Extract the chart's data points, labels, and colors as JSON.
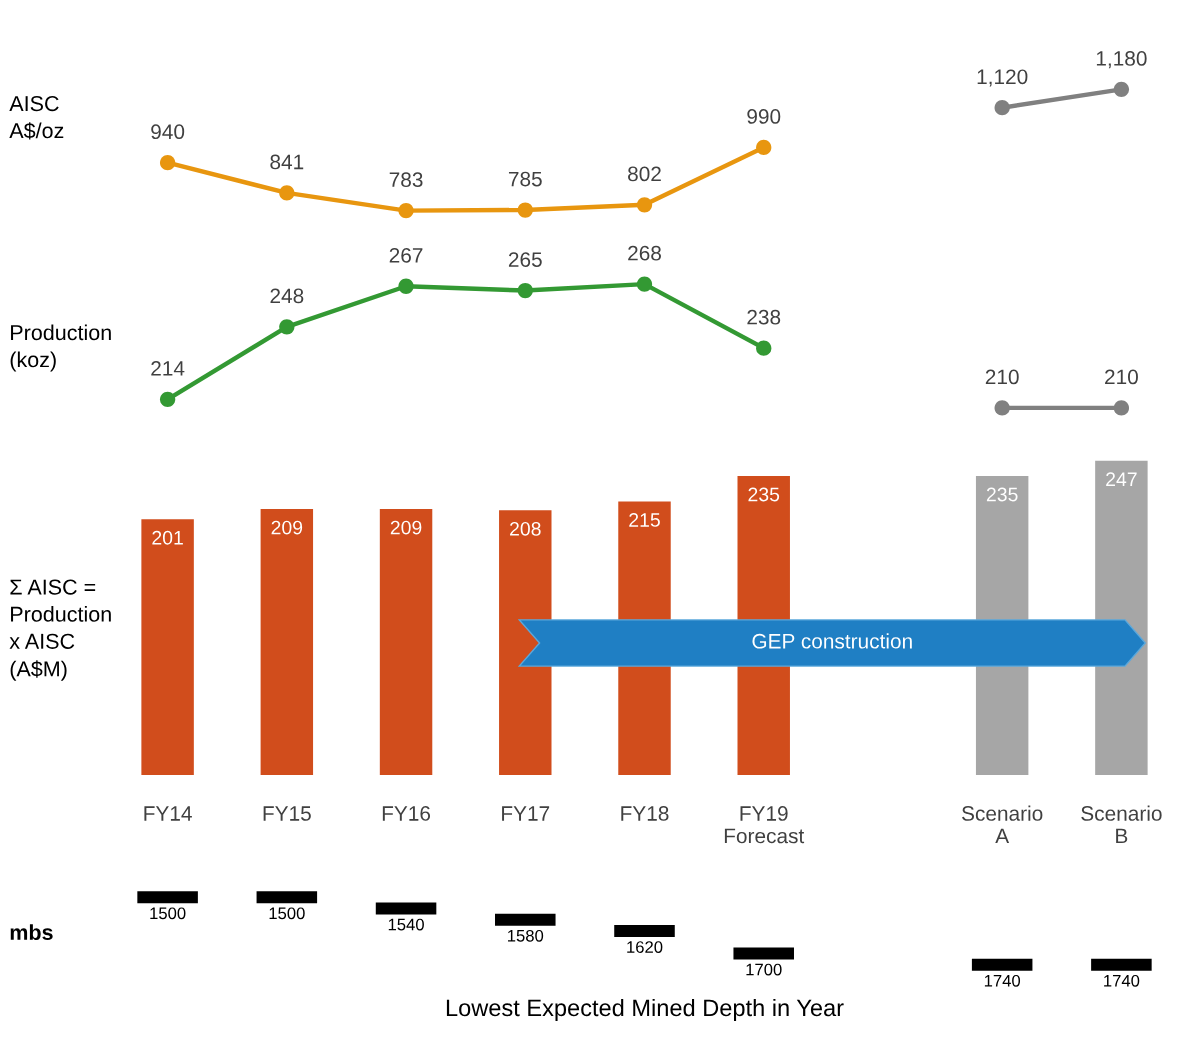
{
  "chart_data": [
    {
      "type": "line",
      "ylabel": "AISC\nA$/oz",
      "categories": [
        null,
        null,
        null,
        null,
        null,
        null,
        null,
        null,
        null
      ],
      "series": [
        {
          "color": "#e8960f",
          "values": [
            940,
            841,
            783,
            785,
            802,
            990,
            null,
            null,
            null
          ],
          "value_labels": [
            "940",
            "841",
            "783",
            "785",
            "802",
            "990",
            null,
            null,
            null
          ]
        },
        {
          "color": "#808080",
          "values": [
            null,
            null,
            null,
            null,
            null,
            null,
            null,
            1120,
            1180
          ],
          "value_labels": [
            null,
            null,
            null,
            null,
            null,
            null,
            null,
            "1,120",
            "1,180"
          ]
        }
      ],
      "marker": "circle",
      "line_style": "solid",
      "tick_labels": false
    },
    {
      "type": "line",
      "ylabel": "Production\n(koz)",
      "categories": [
        null,
        null,
        null,
        null,
        null,
        null,
        null,
        null,
        null
      ],
      "series": [
        {
          "color": "#339933",
          "values": [
            214,
            248,
            267,
            265,
            268,
            238,
            null,
            null,
            null
          ]
        },
        {
          "color": "#808080",
          "values": [
            null,
            null,
            null,
            null,
            null,
            null,
            null,
            210,
            210
          ]
        }
      ],
      "marker": "circle",
      "line_style": "solid",
      "data_labels": true,
      "tick_labels": false
    },
    {
      "type": "bar",
      "ylabel": "Σ AISC =\nProduction\nx AISC\n(A$M)",
      "categories": [
        "FY14",
        "FY15",
        "FY16",
        "FY17",
        "FY18",
        "FY19\nForecast",
        null,
        "Scenario\nA",
        "Scenario\nB"
      ],
      "values": [
        201,
        209,
        209,
        208,
        215,
        235,
        null,
        235,
        247
      ],
      "colors": [
        "#d14d1c",
        "#d14d1c",
        "#d14d1c",
        "#d14d1c",
        "#d14d1c",
        "#d14d1c",
        "#d14d1c",
        "#a6a6a6",
        "#a6a6a6"
      ],
      "data_labels": true,
      "tick_labels": "x",
      "annotations": [
        "GEP construction"
      ]
    },
    {
      "type": "other",
      "ylabel": "mbs",
      "xlabel": "Lowest Expected Mined Depth in Year",
      "categories": [
        null,
        null,
        null,
        null,
        null,
        null,
        null,
        null,
        null
      ],
      "values": [
        1500,
        1500,
        1540,
        1580,
        1620,
        1700,
        null,
        1740,
        1740
      ],
      "color": "#000000",
      "data_labels": true
    }
  ]
}
